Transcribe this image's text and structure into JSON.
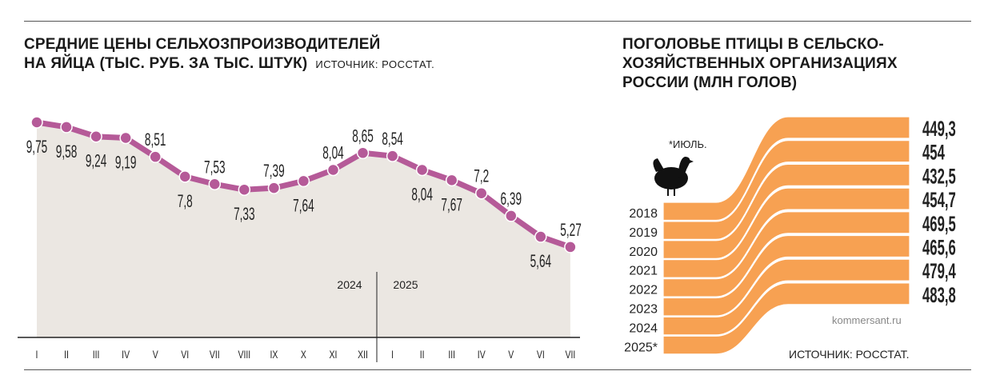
{
  "left": {
    "title_line1": "СРЕДНИЕ ЦЕНЫ СЕЛЬХОЗПРОИЗВОДИТЕЛЕЙ",
    "title_line2": "НА ЯЙЦА (ТЫС. РУБ. ЗА ТЫС. ШТУК)",
    "source": "ИСТОЧНИК:  РОССТАТ."
  },
  "right": {
    "title_line1": "ПОГОЛОВЬЕ ПТИЦЫ В СЕЛЬСКО-",
    "title_line2": "ХОЗЯЙСТВЕННЫХ ОРГАНИЗАЦИЯХ",
    "title_line3": "РОССИИ (МЛН ГОЛОВ)",
    "footnote": "*ИЮЛЬ.",
    "watermark": "kommersant.ru",
    "source": "ИСТОЧНИК:  РОССТАТ.",
    "icon": "chicken-icon"
  },
  "chart_data": [
    {
      "type": "line",
      "title": "СРЕДНИЕ ЦЕНЫ СЕЛЬХОЗПРОИЗВОДИТЕЛЕЙ НА ЯЙЦА (ТЫС. РУБ. ЗА ТЫС. ШТУК)",
      "categories": [
        "I",
        "II",
        "III",
        "IV",
        "V",
        "VI",
        "VII",
        "VIII",
        "IX",
        "X",
        "XI",
        "XII",
        "I",
        "II",
        "III",
        "IV",
        "V",
        "VI",
        "VII"
      ],
      "year_labels": [
        "2024",
        "2025"
      ],
      "values": [
        9.75,
        9.58,
        9.24,
        9.19,
        8.51,
        7.8,
        7.53,
        7.33,
        7.39,
        7.64,
        8.04,
        8.65,
        8.54,
        8.04,
        7.67,
        7.2,
        6.39,
        5.64,
        5.27
      ],
      "data_labels": [
        "9,75",
        "9,58",
        "9,24",
        "9,19",
        "8,51",
        "7,8",
        "7,53",
        "7,33",
        "7,39",
        "7,64",
        "8,04",
        "8,65",
        "8,54",
        "8,04",
        "7,67",
        "7,2",
        "6,39",
        "5,64",
        "5,27"
      ],
      "line_color": "#b55a98",
      "area_color": "#ebe7e2",
      "grid": false
    },
    {
      "type": "flow",
      "title": "ПОГОЛОВЬЕ ПТИЦЫ В СЕЛЬСКОХОЗЯЙСТВЕННЫХ ОРГАНИЗАЦИЯХ РОССИИ (МЛН ГОЛОВ)",
      "categories": [
        "2018",
        "2019",
        "2020",
        "2021",
        "2022",
        "2023",
        "2024",
        "2025*"
      ],
      "values": [
        449.3,
        454,
        432.5,
        454.7,
        469.5,
        465.6,
        479.4,
        483.8
      ],
      "data_labels": [
        "449,3",
        "454",
        "432,5",
        "454,7",
        "469,5",
        "465,6",
        "479,4",
        "483,8"
      ],
      "color": "#f7a152"
    }
  ]
}
